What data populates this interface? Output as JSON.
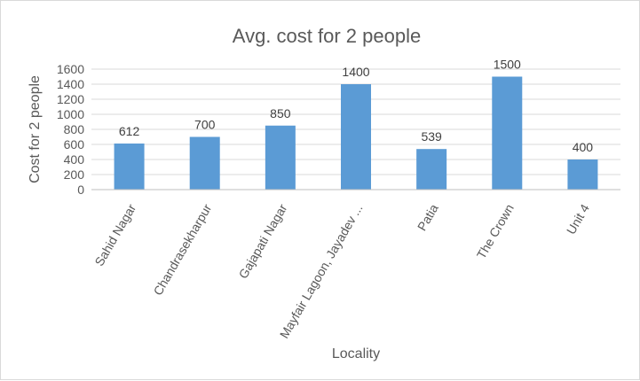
{
  "chart_data": {
    "type": "bar",
    "title": "Avg. cost for 2 people",
    "xlabel": "Locality",
    "ylabel": "Cost for 2 people",
    "categories": [
      "Sahid Nagar",
      "Chandrasekharpur",
      "Gajapati Nagar",
      "Mayfair Lagoon, Jayadev ...",
      "Patia",
      "The Crown",
      "Unit 4"
    ],
    "values": [
      612,
      700,
      850,
      1400,
      539,
      1500,
      400
    ],
    "data_labels": [
      "612",
      "700",
      "850",
      "1400",
      "539",
      "1500",
      "400"
    ],
    "ylim": [
      0,
      1600
    ],
    "yticks": [
      "0",
      "200",
      "400",
      "600",
      "800",
      "1000",
      "1200",
      "1400",
      "1600"
    ],
    "grid": true,
    "legend": "none",
    "bar_color": "#5b9bd5"
  }
}
